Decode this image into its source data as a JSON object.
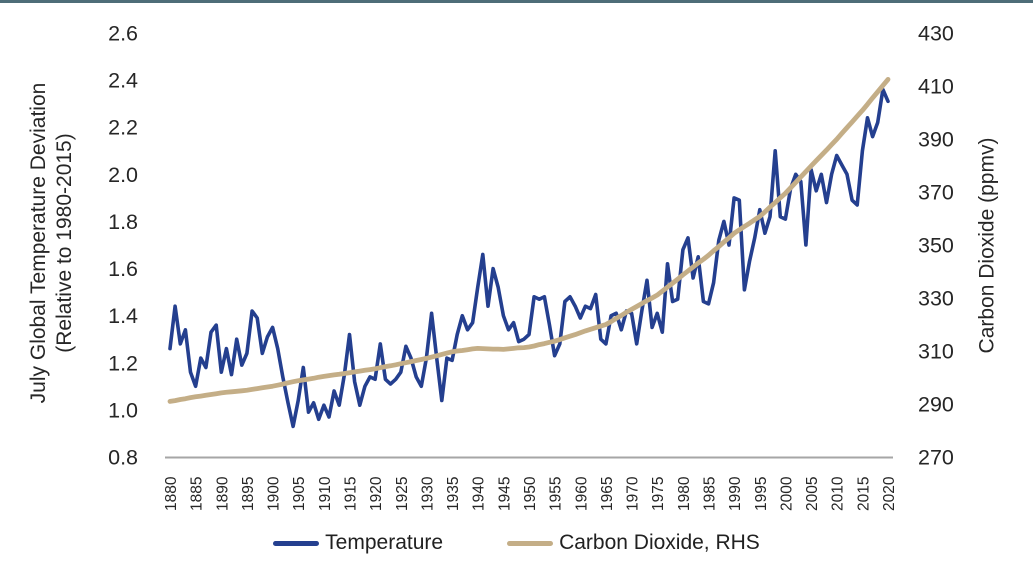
{
  "page": {
    "top_border_color": "#4E6D78",
    "background": "#FFFFFF"
  },
  "chart_data": {
    "type": "line",
    "title": "",
    "grid": "off",
    "x_axis": {
      "start": 1880,
      "end": 2020,
      "step": 1,
      "tick_labels": [
        "1880",
        "1885",
        "1890",
        "1895",
        "1900",
        "1905",
        "1910",
        "1915",
        "1920",
        "1925",
        "1930",
        "1935",
        "1940",
        "1945",
        "1950",
        "1955",
        "1960",
        "1965",
        "1970",
        "1975",
        "1980",
        "1985",
        "1990",
        "1995",
        "2000",
        "2005",
        "2010",
        "2015",
        "2020"
      ],
      "label_rotation": -90
    },
    "left_axis": {
      "title_line1": "July Global Temperature Deviation",
      "title_line2": "(Relative to 1980-2015)",
      "min": 0.8,
      "max": 2.6,
      "tick_labels": [
        "2.6",
        "2.4",
        "2.2",
        "2.0",
        "1.8",
        "1.6",
        "1.4",
        "1.2",
        "1.0",
        "0.8"
      ]
    },
    "right_axis": {
      "title": "Carbon Dioxide (ppmv)",
      "min": 270,
      "max": 430,
      "tick_labels": [
        "430",
        "410",
        "390",
        "370",
        "350",
        "330",
        "310",
        "290",
        "270"
      ]
    },
    "legend": {
      "position": "bottom",
      "items": [
        {
          "label": "Temperature",
          "color": "#243F8F"
        },
        {
          "label": "Carbon Dioxide, RHS",
          "color": "#C4AE87"
        }
      ]
    },
    "colors": {
      "temperature": "#243F8F",
      "carbon_dioxide": "#C4AE87",
      "axis_line": "#A6A6A6",
      "text": "#262626"
    },
    "series": [
      {
        "name": "Temperature",
        "axis": "left",
        "values": [
          1.26,
          1.44,
          1.28,
          1.34,
          1.16,
          1.1,
          1.22,
          1.18,
          1.33,
          1.36,
          1.16,
          1.26,
          1.15,
          1.3,
          1.19,
          1.24,
          1.42,
          1.39,
          1.24,
          1.31,
          1.35,
          1.26,
          1.14,
          1.03,
          0.93,
          1.04,
          1.18,
          0.99,
          1.03,
          0.96,
          1.02,
          0.97,
          1.08,
          1.02,
          1.15,
          1.32,
          1.12,
          1.02,
          1.1,
          1.14,
          1.13,
          1.28,
          1.13,
          1.11,
          1.13,
          1.16,
          1.27,
          1.22,
          1.14,
          1.1,
          1.22,
          1.41,
          1.22,
          1.04,
          1.22,
          1.21,
          1.32,
          1.4,
          1.34,
          1.37,
          1.52,
          1.66,
          1.44,
          1.6,
          1.52,
          1.4,
          1.34,
          1.37,
          1.29,
          1.3,
          1.32,
          1.48,
          1.47,
          1.48,
          1.36,
          1.23,
          1.28,
          1.46,
          1.48,
          1.44,
          1.39,
          1.44,
          1.43,
          1.49,
          1.3,
          1.28,
          1.4,
          1.41,
          1.34,
          1.42,
          1.41,
          1.28,
          1.42,
          1.55,
          1.35,
          1.41,
          1.33,
          1.62,
          1.46,
          1.47,
          1.68,
          1.73,
          1.56,
          1.65,
          1.46,
          1.45,
          1.54,
          1.72,
          1.8,
          1.7,
          1.9,
          1.89,
          1.51,
          1.63,
          1.73,
          1.85,
          1.75,
          1.82,
          2.1,
          1.82,
          1.81,
          1.94,
          2.0,
          1.97,
          1.7,
          2.02,
          1.93,
          2.0,
          1.88,
          2.0,
          2.08,
          2.04,
          2.0,
          1.89,
          1.87,
          2.1,
          2.24,
          2.16,
          2.22,
          2.36,
          2.31
        ]
      },
      {
        "name": "Carbon Dioxide, RHS",
        "axis": "right",
        "values": [
          291.0,
          291.3,
          291.7,
          292.0,
          292.4,
          292.7,
          293.0,
          293.3,
          293.6,
          293.9,
          294.2,
          294.4,
          294.6,
          294.8,
          295.0,
          295.2,
          295.5,
          295.8,
          296.1,
          296.4,
          296.7,
          297.1,
          297.5,
          298.0,
          298.4,
          298.8,
          299.1,
          299.4,
          299.7,
          300.1,
          300.4,
          300.7,
          301.0,
          301.2,
          301.5,
          301.8,
          302.1,
          302.4,
          302.7,
          303.0,
          303.3,
          303.7,
          304.1,
          304.4,
          304.8,
          305.2,
          305.6,
          306.0,
          306.4,
          306.8,
          307.2,
          307.7,
          308.2,
          308.7,
          309.2,
          309.7,
          310.0,
          310.2,
          310.5,
          310.8,
          311.0,
          310.9,
          310.8,
          310.7,
          310.7,
          310.6,
          310.8,
          311.0,
          311.2,
          311.3,
          311.5,
          311.9,
          312.4,
          312.8,
          313.3,
          313.7,
          314.3,
          315.0,
          315.6,
          316.2,
          316.9,
          317.6,
          318.2,
          318.8,
          319.4,
          320.0,
          321.1,
          322.3,
          323.4,
          324.6,
          325.7,
          326.8,
          327.9,
          329.0,
          330.0,
          331.1,
          332.6,
          334.1,
          335.6,
          337.1,
          338.7,
          340.2,
          341.7,
          343.2,
          344.6,
          346.1,
          347.8,
          349.4,
          351.1,
          352.7,
          354.4,
          355.7,
          357.0,
          358.2,
          359.5,
          360.8,
          362.5,
          364.3,
          366.0,
          367.8,
          369.5,
          371.6,
          373.6,
          375.7,
          377.7,
          379.8,
          381.8,
          383.8,
          385.8,
          387.9,
          389.9,
          392.1,
          394.3,
          396.4,
          398.6,
          400.8,
          403.1,
          405.5,
          407.8,
          410.2,
          412.5
        ]
      }
    ]
  }
}
